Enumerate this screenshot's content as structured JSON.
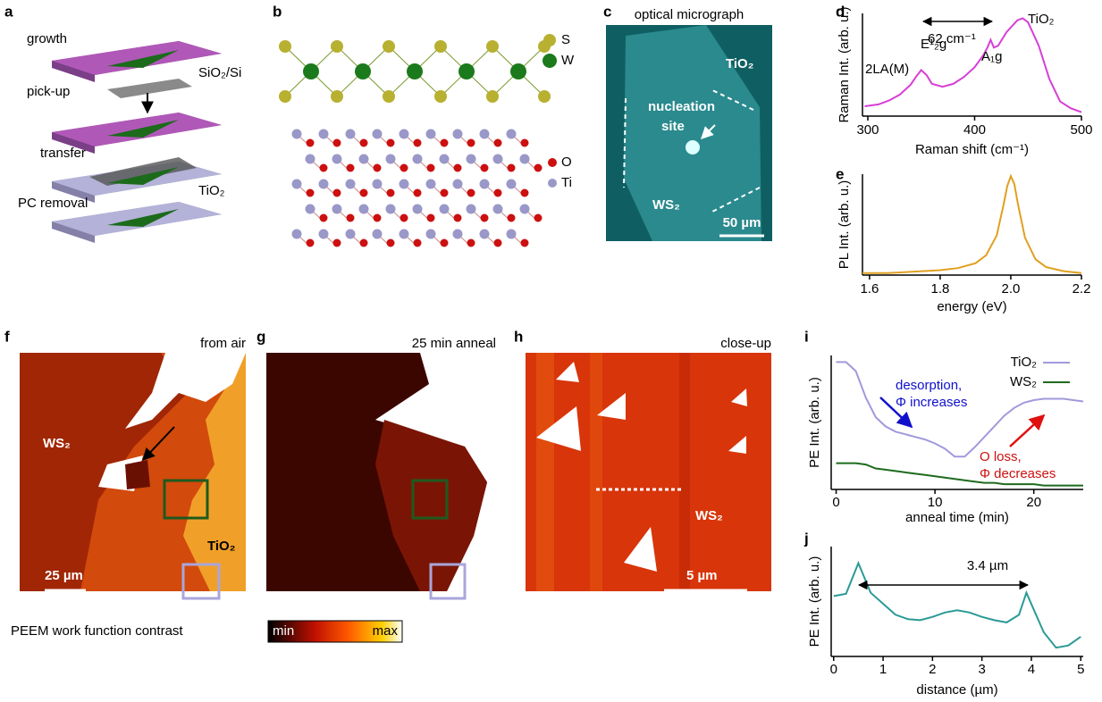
{
  "panels": {
    "a": {
      "label": "a",
      "texts": [
        "growth",
        "SiO₂/Si",
        "pick-up",
        "transfer",
        "TiO₂",
        "PC removal"
      ]
    },
    "b": {
      "label": "b",
      "legend": [
        "S",
        "W",
        "O",
        "Ti"
      ]
    },
    "c": {
      "label": "c",
      "title": "optical micrograph",
      "texts": [
        "TiO₂",
        "nucleation",
        "site",
        "WS₂"
      ],
      "scale_bar": "50 µm"
    },
    "d": {
      "label": "d"
    },
    "e": {
      "label": "e"
    },
    "f": {
      "label": "f",
      "title": "from air",
      "texts": [
        "WS₂",
        "TiO₂"
      ],
      "scale_bar": "25 µm"
    },
    "g": {
      "label": "g",
      "title": "25 min anneal"
    },
    "h": {
      "label": "h",
      "title": "close-up",
      "texts": [
        "WS₂"
      ],
      "scale_bar": "5 µm"
    },
    "i": {
      "label": "i"
    },
    "j": {
      "label": "j"
    },
    "colorbar": {
      "label": "PEEM work function contrast",
      "min": "min",
      "max": "max"
    }
  },
  "chart_data": [
    {
      "type": "line",
      "ylabel": "Raman Int. (arb. u.)",
      "xlabel": "Raman shift (cm⁻¹)",
      "x": [
        297,
        310,
        320,
        330,
        340,
        345,
        350,
        355,
        360,
        370,
        380,
        390,
        400,
        408,
        412,
        415,
        418,
        422,
        430,
        440,
        445,
        450,
        460,
        470,
        480,
        490,
        500
      ],
      "series": [
        {
          "color": "#d63fd6",
          "values": [
            0.1,
            0.12,
            0.16,
            0.22,
            0.32,
            0.4,
            0.47,
            0.42,
            0.33,
            0.3,
            0.33,
            0.4,
            0.5,
            0.62,
            0.7,
            0.78,
            0.7,
            0.72,
            0.86,
            0.98,
            1.0,
            0.96,
            0.72,
            0.38,
            0.15,
            0.08,
            0.04
          ]
        }
      ],
      "xlim": [
        295,
        500
      ],
      "ylim": [
        0,
        1.05
      ],
      "xticks": [
        300,
        400,
        500
      ],
      "annotations": [
        "2LA(M)",
        "E¹₂g",
        "A₁g",
        "TiO₂",
        "62 cm⁻¹"
      ]
    },
    {
      "type": "line",
      "ylabel": "PL Int. (arb. u.)",
      "xlabel": "energy (eV)",
      "x": [
        1.58,
        1.65,
        1.7,
        1.75,
        1.8,
        1.85,
        1.9,
        1.93,
        1.96,
        1.98,
        1.99,
        2.0,
        2.01,
        2.02,
        2.04,
        2.07,
        2.1,
        2.15,
        2.2
      ],
      "series": [
        {
          "color": "#e0a020",
          "values": [
            0.02,
            0.02,
            0.03,
            0.04,
            0.05,
            0.07,
            0.12,
            0.2,
            0.4,
            0.72,
            0.9,
            1.0,
            0.92,
            0.72,
            0.38,
            0.16,
            0.08,
            0.04,
            0.02
          ]
        }
      ],
      "xlim": [
        1.58,
        2.2
      ],
      "ylim": [
        0,
        1.02
      ],
      "xticks": [
        1.6,
        1.8,
        {
          "value": 2,
          "label": "2.0"
        },
        2.2
      ]
    },
    {
      "type": "line",
      "ylabel": "PE Int. (arb. u.)",
      "xlabel": "anneal time (min)",
      "x": [
        0,
        1,
        2,
        3,
        4,
        5,
        6,
        7,
        8,
        9,
        10,
        11,
        12,
        13,
        14,
        15,
        16,
        17,
        18,
        19,
        20,
        21,
        22,
        23,
        24,
        25
      ],
      "series": [
        {
          "name": "TiO₂",
          "color": "#a09adb",
          "values": [
            0.97,
            0.97,
            0.9,
            0.7,
            0.55,
            0.48,
            0.44,
            0.42,
            0.4,
            0.38,
            0.35,
            0.31,
            0.25,
            0.25,
            0.32,
            0.4,
            0.48,
            0.56,
            0.62,
            0.66,
            0.68,
            0.69,
            0.69,
            0.69,
            0.68,
            0.67
          ]
        },
        {
          "name": "WS₂",
          "color": "#1e6b1e",
          "values": [
            0.2,
            0.2,
            0.2,
            0.19,
            0.16,
            0.15,
            0.14,
            0.13,
            0.12,
            0.11,
            0.1,
            0.09,
            0.08,
            0.07,
            0.06,
            0.05,
            0.05,
            0.04,
            0.04,
            0.04,
            0.04,
            0.03,
            0.03,
            0.03,
            0.03,
            0.03
          ]
        }
      ],
      "xlim": [
        -0.5,
        25
      ],
      "ylim": [
        0,
        1.02
      ],
      "xticks": [
        0,
        10,
        20
      ],
      "annotations": [
        "desorption,",
        "Φ increases",
        "O loss,",
        "Φ decreases"
      ]
    },
    {
      "type": "line",
      "ylabel": "PE Int. (arb. u.)",
      "xlabel": "distance (µm)",
      "x": [
        0,
        0.25,
        0.5,
        0.75,
        1.0,
        1.25,
        1.5,
        1.75,
        2.0,
        2.25,
        2.5,
        2.75,
        3.0,
        3.25,
        3.5,
        3.75,
        3.9,
        4.25,
        4.5,
        4.75,
        5.0
      ],
      "series": [
        {
          "color": "#2a9a95",
          "values": [
            0.55,
            0.57,
            0.85,
            0.58,
            0.48,
            0.38,
            0.34,
            0.33,
            0.36,
            0.4,
            0.42,
            0.4,
            0.36,
            0.33,
            0.31,
            0.38,
            0.58,
            0.22,
            0.08,
            0.1,
            0.18
          ]
        }
      ],
      "xlim": [
        -0.05,
        5.05
      ],
      "ylim": [
        0,
        1
      ],
      "xticks": [
        0,
        1,
        2,
        3,
        4,
        5
      ],
      "annotations": [
        "3.4 µm"
      ]
    }
  ]
}
